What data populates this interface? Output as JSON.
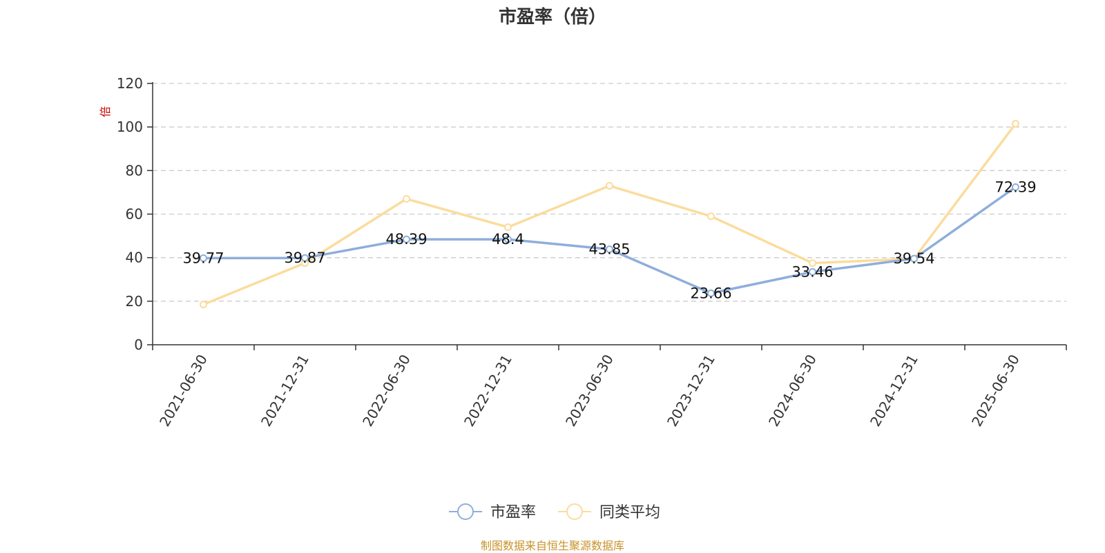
{
  "chart_data": {
    "type": "line",
    "title": "市盈率（倍）",
    "ylabel": "倍",
    "xlabel": "",
    "ylim": [
      0,
      120
    ],
    "yticks": [
      0,
      20,
      40,
      60,
      80,
      100,
      120
    ],
    "grid": true,
    "legend_position": "bottom",
    "categories": [
      "2021-06-30",
      "2021-12-31",
      "2022-06-30",
      "2022-12-31",
      "2023-06-30",
      "2023-12-31",
      "2024-06-30",
      "2024-12-31",
      "2025-06-30"
    ],
    "series": [
      {
        "name": "市盈率",
        "color": "#8eaedb",
        "values": [
          39.77,
          39.87,
          48.39,
          48.4,
          43.85,
          23.66,
          33.46,
          39.54,
          72.39
        ],
        "labels": [
          "39.77",
          "39.87",
          "48.39",
          "48.4",
          "43.85",
          "23.66",
          "33.46",
          "39.54",
          "72.39"
        ]
      },
      {
        "name": "同类平均",
        "color": "#fbdc9c",
        "values": [
          18.5,
          37.5,
          67,
          54,
          73,
          59,
          37.5,
          39.5,
          101.5
        ]
      }
    ]
  },
  "footer": {
    "source": "制图数据来自恒生聚源数据库"
  },
  "colors": {
    "axis": "#333333",
    "grid": "#cccccc",
    "ylabel": "#cc0000",
    "source": "#c8922a"
  }
}
